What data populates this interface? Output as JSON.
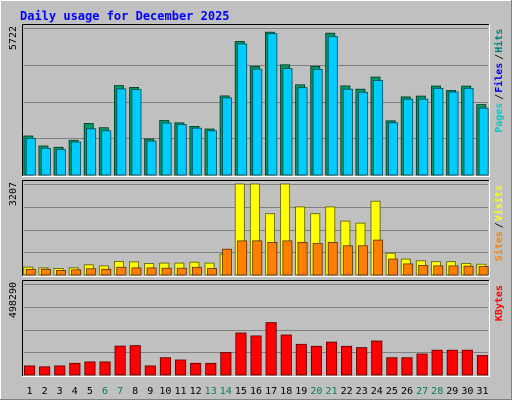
{
  "title": "Daily usage for December 2025",
  "chart_data": [
    {
      "type": "bar",
      "panel": "hits-files-pages",
      "categories": [
        "1",
        "2",
        "3",
        "4",
        "5",
        "6",
        "7",
        "8",
        "9",
        "10",
        "11",
        "12",
        "13",
        "14",
        "15",
        "16",
        "17",
        "18",
        "19",
        "20",
        "21",
        "22",
        "23",
        "24",
        "25",
        "26",
        "27",
        "28",
        "29",
        "30",
        "31"
      ],
      "weekend_days": [
        "6",
        "7",
        "13",
        "14",
        "20",
        "21",
        "27",
        "28"
      ],
      "max_label": "5722",
      "ylim": [
        0,
        5722
      ],
      "legend": [
        {
          "label": "Pages",
          "color": "#00cccc"
        },
        {
          "label": "Files",
          "color": "#0000ff"
        },
        {
          "label": "Hits",
          "color": "#008080"
        }
      ],
      "series": [
        {
          "name": "Hits",
          "color": "#009966",
          "values": [
            1520,
            1130,
            1080,
            1350,
            2010,
            1840,
            3480,
            3410,
            1400,
            2120,
            2030,
            1890,
            1790,
            3080,
            5200,
            4230,
            5560,
            4290,
            3510,
            4230,
            5520,
            3470,
            3340,
            3810,
            2110,
            3040,
            3070,
            3460,
            3290,
            3460,
            2740
          ]
        },
        {
          "name": "Files",
          "color": "#00ccff",
          "values": [
            1420,
            1040,
            990,
            1280,
            1800,
            1720,
            3350,
            3330,
            1320,
            2020,
            1960,
            1820,
            1720,
            3000,
            5100,
            4120,
            5500,
            4140,
            3400,
            4110,
            5390,
            3340,
            3220,
            3680,
            2030,
            2950,
            2950,
            3370,
            3230,
            3370,
            2600
          ]
        }
      ]
    },
    {
      "type": "bar",
      "panel": "visits-sites",
      "categories": [
        "1",
        "2",
        "3",
        "4",
        "5",
        "6",
        "7",
        "8",
        "9",
        "10",
        "11",
        "12",
        "13",
        "14",
        "15",
        "16",
        "17",
        "18",
        "19",
        "20",
        "21",
        "22",
        "23",
        "24",
        "25",
        "26",
        "27",
        "28",
        "29",
        "30",
        "31"
      ],
      "max_label": "3207",
      "ylim": [
        0,
        3207
      ],
      "legend": [
        {
          "label": "Sites",
          "color": "#ff8000"
        },
        {
          "label": "Visits",
          "color": "#ffff00"
        }
      ],
      "series": [
        {
          "name": "Visits",
          "color": "#ffff00",
          "values": [
            280,
            250,
            230,
            250,
            360,
            320,
            480,
            460,
            400,
            420,
            420,
            450,
            420,
            730,
            3207,
            3207,
            2160,
            3207,
            2400,
            2160,
            2400,
            1900,
            1830,
            2600,
            770,
            560,
            500,
            470,
            470,
            410,
            380
          ]
        },
        {
          "name": "Sites",
          "color": "#ff8000",
          "values": [
            200,
            200,
            160,
            180,
            220,
            200,
            270,
            250,
            250,
            240,
            240,
            270,
            230,
            910,
            1200,
            1200,
            1150,
            1200,
            1150,
            1110,
            1150,
            1030,
            1030,
            1230,
            560,
            390,
            340,
            320,
            320,
            310,
            300
          ]
        }
      ]
    },
    {
      "type": "bar",
      "panel": "kbytes",
      "categories": [
        "1",
        "2",
        "3",
        "4",
        "5",
        "6",
        "7",
        "8",
        "9",
        "10",
        "11",
        "12",
        "13",
        "14",
        "15",
        "16",
        "17",
        "18",
        "19",
        "20",
        "21",
        "22",
        "23",
        "24",
        "25",
        "26",
        "27",
        "28",
        "29",
        "30",
        "31"
      ],
      "max_label": "498290",
      "ylim": [
        0,
        498290
      ],
      "legend": [
        {
          "label": "KBytes",
          "color": "#ff0000"
        }
      ],
      "series": [
        {
          "name": "KBytes",
          "color": "#ff0000",
          "values": [
            50000,
            45000,
            50000,
            64000,
            72000,
            72000,
            158000,
            161000,
            50000,
            95000,
            82000,
            64000,
            64000,
            123000,
            230000,
            214000,
            287000,
            219000,
            168000,
            157000,
            180000,
            157000,
            150000,
            186000,
            95000,
            95000,
            115000,
            136000,
            136000,
            136000,
            107000
          ]
        }
      ]
    }
  ]
}
